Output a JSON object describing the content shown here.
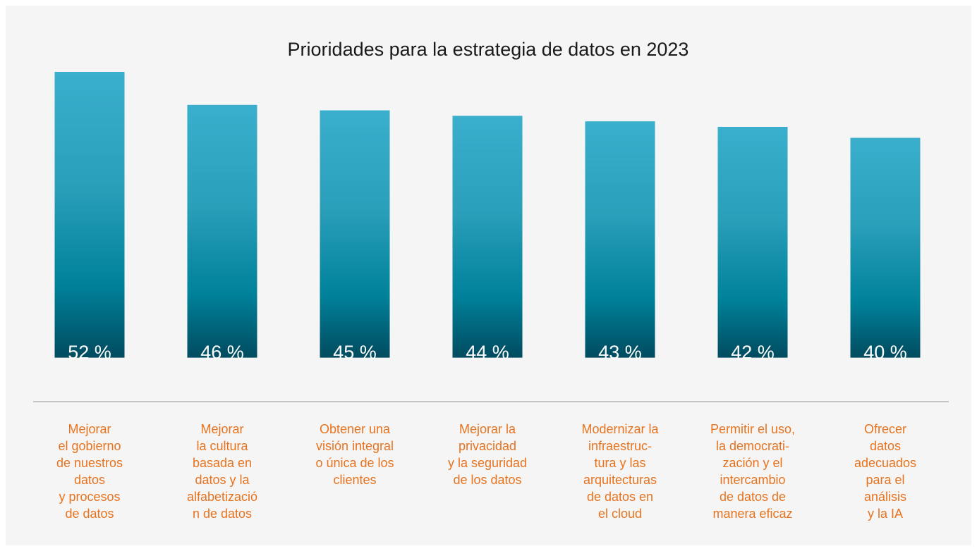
{
  "chart_data": {
    "type": "bar",
    "title": "Prioridades para la estrategia de datos en 2023",
    "categories": [
      [
        "Mejorar",
        "el gobierno",
        "de nuestros",
        "datos",
        "y procesos",
        "de datos"
      ],
      [
        "Mejorar",
        "la cultura",
        "basada en",
        "datos y la",
        "alfabetizació",
        "n de datos"
      ],
      [
        "Obtener una",
        "visión integral",
        "o única de los",
        "clientes"
      ],
      [
        "Mejorar la",
        "privacidad",
        "y la seguridad",
        "de los datos"
      ],
      [
        "Modernizar la",
        "infraestruc-",
        "tura y las",
        "arquitecturas",
        "de datos en",
        "el cloud"
      ],
      [
        "Permitir el uso,",
        "la democrati-",
        "zación y el",
        "intercambio",
        "de datos de",
        "manera eficaz"
      ],
      [
        "Ofrecer",
        "datos",
        "adecuados",
        "para el",
        "análisis",
        "y la IA"
      ]
    ],
    "values": [
      52,
      46,
      45,
      44,
      43,
      42,
      40
    ],
    "value_labels": [
      "52 %",
      "46 %",
      "45 %",
      "44 %",
      "43 %",
      "42 %",
      "40 %"
    ],
    "ylim": [
      -8,
      52
    ]
  }
}
